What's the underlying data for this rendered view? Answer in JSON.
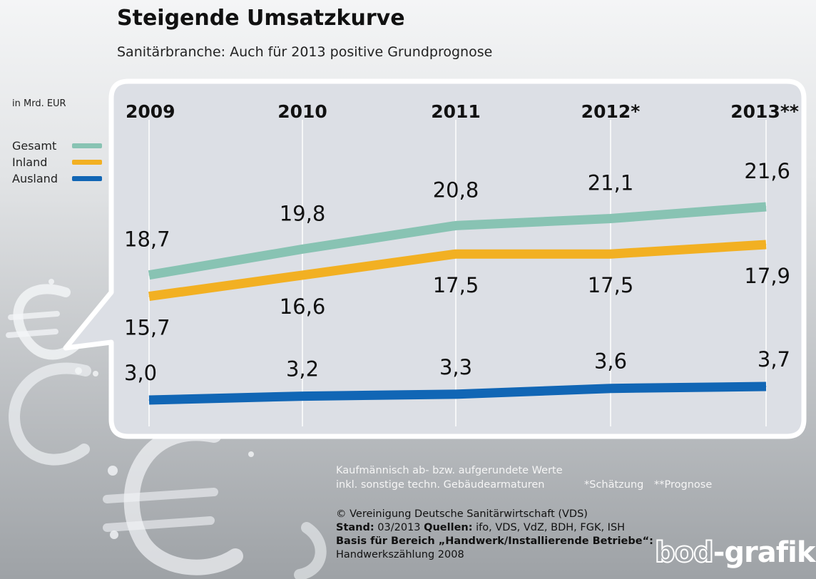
{
  "header": {
    "title": "Steigende Umsatzkurve",
    "subtitle": "Sanitärbranche: Auch für 2013 positive Grundprognose"
  },
  "unit_label": "in Mrd. EUR",
  "chart_data": {
    "type": "line",
    "categories": [
      "2009",
      "2010",
      "2011",
      "2012*",
      "2013**"
    ],
    "series": [
      {
        "name": "Gesamt",
        "color": "#88c3b3",
        "values": [
          18.7,
          19.8,
          20.8,
          21.1,
          21.6
        ],
        "labels": [
          "18,7",
          "19,8",
          "20,8",
          "21,1",
          "21,6"
        ]
      },
      {
        "name": "Inland",
        "color": "#f2b022",
        "values": [
          15.7,
          16.6,
          17.5,
          17.5,
          17.9
        ],
        "labels": [
          "15,7",
          "16,6",
          "17,5",
          "17,5",
          "17,9"
        ]
      },
      {
        "name": "Ausland",
        "color": "#1166b5",
        "values": [
          3.0,
          3.2,
          3.3,
          3.6,
          3.7
        ],
        "labels": [
          "3,0",
          "3,2",
          "3,3",
          "3,6",
          "3,7"
        ]
      }
    ],
    "legend_position": "left",
    "grid": true
  },
  "notes": {
    "line1": "Kaufmännisch ab- bzw. aufgerundete Werte",
    "line2": "inkl. sonstige techn. Gebäudearmaturen",
    "schaetzung": "*Schätzung",
    "prognose": "**Prognose"
  },
  "footer": {
    "copyright": "© Vereinigung Deutsche Sanitärwirtschaft (VDS)",
    "stand_label": "Stand:",
    "stand_value": "03/2013",
    "quellen_label": "Quellen:",
    "quellen_value": "ifo, VDS, VdZ, BDH, FGK, ISH",
    "basis_label": "Basis für Bereich „Handwerk/Installierende Betriebe“:",
    "basis_value": "Handwerkszählung 2008"
  },
  "logo": {
    "part1": "bod",
    "part2": "-grafik"
  },
  "colors": {
    "panel_fill": "#dcdfe5",
    "panel_border": "#ffffff"
  }
}
